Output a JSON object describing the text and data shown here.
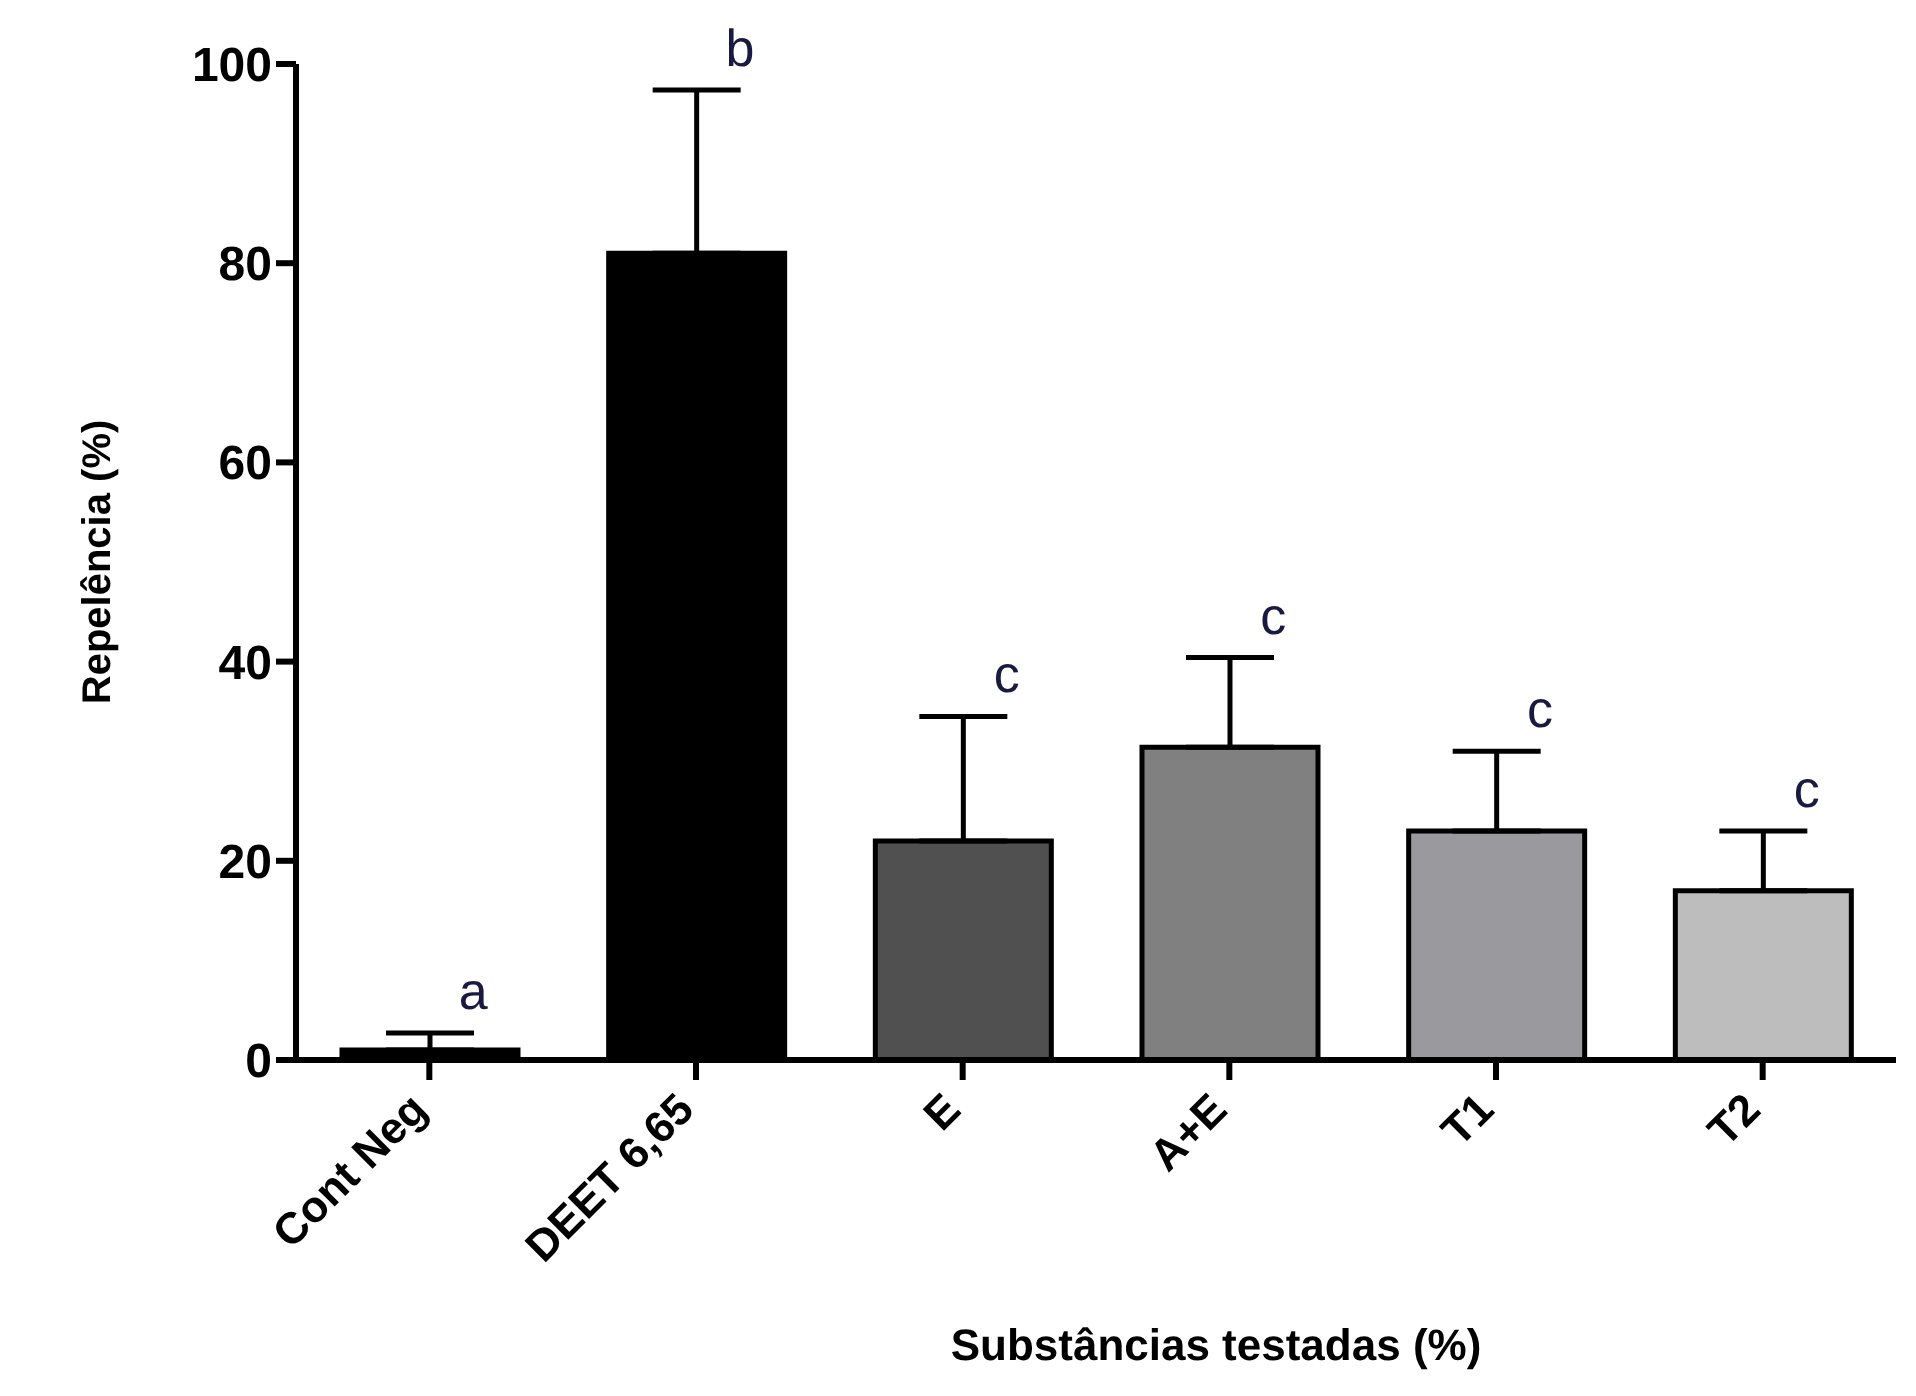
{
  "chart_data": {
    "type": "bar",
    "xlabel": "Substâncias testadas (%)",
    "ylabel": "Repelência (%)",
    "categories": [
      "Cont Neg",
      "DEET 6,65",
      "E",
      "A+E",
      "T1",
      "T2"
    ],
    "values": [
      1,
      81,
      22,
      31.4,
      23,
      17
    ],
    "errors": [
      [
        1,
        2.7
      ],
      [
        81,
        97.4
      ],
      [
        22,
        34.5
      ],
      [
        31.4,
        40.4
      ],
      [
        23,
        31
      ],
      [
        17,
        23
      ]
    ],
    "colors": [
      "#000000",
      "#000000",
      "#505050",
      "#808080",
      "#9a9a9e",
      "#bdbdbd"
    ],
    "ylim": [
      0,
      100
    ],
    "yticks": [
      0,
      20,
      40,
      60,
      80,
      100
    ],
    "grid": false,
    "legend": false,
    "annotations": [
      {
        "text": "a",
        "x": "Cont Neg",
        "y": 2.7
      },
      "b",
      "c",
      "c",
      "c",
      "c"
    ]
  }
}
